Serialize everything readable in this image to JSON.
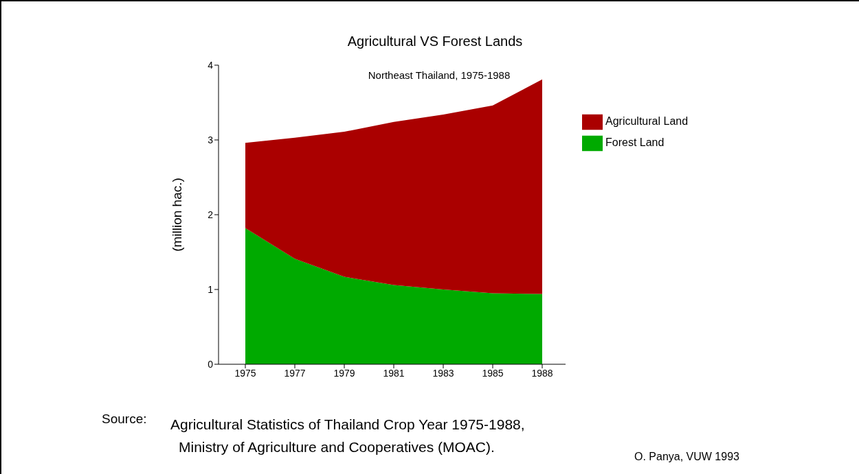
{
  "chart_data": {
    "type": "area",
    "stacked": true,
    "title": "Agricultural VS Forest Lands",
    "subtitle": "Northeast Thailand, 1975-1988",
    "ylabel": "(million hac.)",
    "categories": [
      "1975",
      "1977",
      "1979",
      "1981",
      "1983",
      "1985",
      "1988"
    ],
    "series": [
      {
        "name": "Forest Land",
        "color": "#00aa00",
        "values": [
          1.82,
          1.41,
          1.17,
          1.06,
          1.0,
          0.95,
          0.94
        ]
      },
      {
        "name": "Agricultural Land",
        "color": "#aa0000",
        "values": [
          1.14,
          1.62,
          1.94,
          2.18,
          2.34,
          2.51,
          2.87
        ]
      }
    ],
    "ylim": [
      0,
      4
    ],
    "yticks": [
      0,
      1,
      2,
      3,
      4
    ],
    "grid": false,
    "legend": "right",
    "annotations": [
      "Source:",
      "Agricultural Statistics of Thailand Crop Year 1975-1988,\nMinistry of Agriculture and Cooperatives (MOAC).",
      "O. Panya, VUW 1993"
    ]
  }
}
